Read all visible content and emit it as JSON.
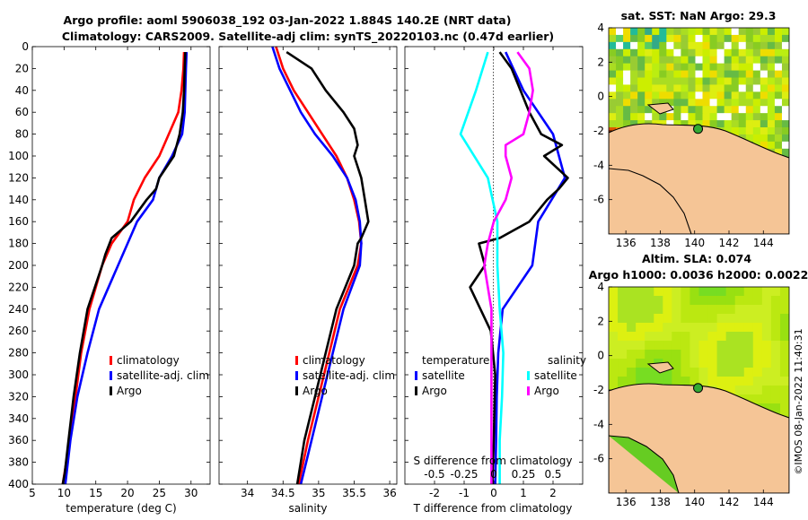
{
  "header": {
    "title_line1": "Argo profile: aoml 5906038_192 03-Jan-2022 1.884S 140.2E (NRT data)",
    "title_line2": "Climatology: CARS2009. Satellite-adj clim: synTS_20220103.nc (0.47d earlier)"
  },
  "footer": {
    "credit": "©IMOS 08-Jan-2022 11:40:31"
  },
  "colors": {
    "climatology": "#ff0000",
    "satellite": "#0000ff",
    "argo": "#000000",
    "satellite_diff": "#00ffff",
    "argo_salinity_diff": "#ff00ff",
    "land": "#f5c596"
  },
  "chart_data": [
    {
      "type": "line",
      "id": "temperature",
      "xlabel": "temperature (deg C)",
      "ylabel": "",
      "xlim": [
        5,
        33
      ],
      "ylim": [
        400,
        0
      ],
      "xticks": [
        "5",
        "10",
        "15",
        "20",
        "25",
        "30"
      ],
      "yticks": [
        "0",
        "20",
        "40",
        "60",
        "80",
        "100",
        "120",
        "140",
        "160",
        "180",
        "200",
        "220",
        "240",
        "260",
        "280",
        "300",
        "320",
        "340",
        "360",
        "380",
        "400"
      ],
      "legend": [
        "climatology",
        "satellite-adj. clim",
        "Argo"
      ],
      "series": [
        {
          "name": "climatology",
          "depth": [
            5,
            20,
            40,
            60,
            80,
            100,
            120,
            140,
            160,
            180,
            200,
            240,
            280,
            320,
            360,
            400
          ],
          "values": [
            28.9,
            28.8,
            28.5,
            28,
            26.5,
            25,
            22.7,
            21,
            20,
            17.5,
            16,
            14,
            12.7,
            11.8,
            10.9,
            9.8
          ]
        },
        {
          "name": "satellite-adj. clim",
          "depth": [
            5,
            20,
            40,
            60,
            80,
            100,
            120,
            140,
            160,
            180,
            200,
            240,
            280,
            320,
            360,
            400
          ],
          "values": [
            29.3,
            29.2,
            29.1,
            29,
            28.6,
            27,
            25,
            24,
            21.5,
            20,
            18.5,
            15.5,
            13.7,
            12.1,
            11,
            10.2
          ]
        },
        {
          "name": "Argo",
          "depth": [
            5,
            20,
            40,
            60,
            80,
            100,
            120,
            130,
            140,
            160,
            175,
            190,
            200,
            240,
            280,
            320,
            360,
            390,
            400
          ],
          "values": [
            29.1,
            29,
            28.9,
            28.7,
            28.2,
            27.3,
            25,
            24.5,
            23,
            20.5,
            17.5,
            16.5,
            16,
            13.7,
            12.5,
            11.5,
            10.7,
            10.1,
            9.8
          ]
        }
      ]
    },
    {
      "type": "line",
      "id": "salinity",
      "xlabel": "salinity",
      "ylabel": "",
      "xlim": [
        33.6,
        36.1
      ],
      "ylim": [
        400,
        0
      ],
      "xticks": [
        "34",
        "34.5",
        "35",
        "35.5",
        "36"
      ],
      "legend": [
        "climatology",
        "satellite-adj. clim",
        "Argo"
      ],
      "series": [
        {
          "name": "climatology",
          "depth": [
            0,
            20,
            40,
            60,
            80,
            100,
            120,
            140,
            160,
            180,
            200,
            240,
            280,
            320,
            360,
            400
          ],
          "values": [
            34.4,
            34.5,
            34.65,
            34.85,
            35.05,
            35.25,
            35.4,
            35.5,
            35.57,
            35.6,
            35.55,
            35.3,
            35.15,
            35.0,
            34.85,
            34.72
          ]
        },
        {
          "name": "satellite-adj. clim",
          "depth": [
            0,
            20,
            40,
            60,
            80,
            100,
            120,
            140,
            160,
            180,
            200,
            240,
            280,
            320,
            360,
            400
          ],
          "values": [
            34.35,
            34.45,
            34.6,
            34.75,
            34.95,
            35.2,
            35.4,
            35.52,
            35.58,
            35.6,
            35.58,
            35.35,
            35.2,
            35.05,
            34.9,
            34.75
          ]
        },
        {
          "name": "Argo",
          "depth": [
            5,
            20,
            40,
            60,
            75,
            90,
            100,
            120,
            140,
            160,
            175,
            180,
            200,
            240,
            280,
            320,
            360,
            400
          ],
          "values": [
            34.55,
            34.9,
            35.1,
            35.35,
            35.5,
            35.55,
            35.5,
            35.6,
            35.65,
            35.7,
            35.6,
            35.55,
            35.5,
            35.25,
            35.1,
            34.95,
            34.8,
            34.7
          ]
        }
      ]
    },
    {
      "type": "line",
      "id": "difference",
      "xlabel": "T difference from climatology",
      "ylabel": "",
      "xlim": [
        -3,
        3
      ],
      "ylim": [
        400,
        0
      ],
      "xticks": [
        "-2",
        "-1",
        "0",
        "1",
        "2"
      ],
      "top_axis_label": "S difference from climatology",
      "top_axis_ticks": [
        "-0.5",
        "-0.25",
        "0",
        "0.25",
        "0.5"
      ],
      "legend_left_title": "temperature",
      "legend_right_title": "salinity",
      "legend_left": [
        "satellite",
        "Argo"
      ],
      "legend_right": [
        "satellite",
        "Argo"
      ],
      "series": [
        {
          "name": "T satellite",
          "depth": [
            5,
            40,
            80,
            120,
            160,
            200,
            240,
            280,
            320,
            360,
            400
          ],
          "values": [
            0.4,
            1.0,
            2.0,
            2.4,
            1.5,
            1.3,
            0.3,
            0.15,
            0.1,
            0.08,
            0.05
          ]
        },
        {
          "name": "T Argo",
          "depth": [
            5,
            20,
            40,
            60,
            80,
            90,
            100,
            120,
            130,
            140,
            160,
            175,
            180,
            200,
            220,
            260,
            300,
            360,
            400
          ],
          "values": [
            0.2,
            0.6,
            0.9,
            1.2,
            1.6,
            2.3,
            1.7,
            2.5,
            2.2,
            1.8,
            1.2,
            0.2,
            -0.5,
            -0.3,
            -0.8,
            -0.1,
            0.05,
            0.0,
            -0.05
          ]
        },
        {
          "name": "S satellite",
          "depth": [
            5,
            40,
            80,
            120,
            160,
            200,
            240,
            280,
            320,
            360,
            400
          ],
          "values": [
            -0.05,
            -0.15,
            -0.28,
            -0.05,
            0.03,
            0.03,
            0.05,
            0.08,
            0.07,
            0.05,
            0.05
          ]
        },
        {
          "name": "S Argo",
          "depth": [
            5,
            20,
            40,
            60,
            80,
            90,
            100,
            120,
            140,
            160,
            180,
            200,
            240,
            280,
            320,
            360,
            400
          ],
          "values": [
            0.2,
            0.3,
            0.33,
            0.3,
            0.25,
            0.1,
            0.1,
            0.15,
            0.1,
            0.0,
            -0.05,
            -0.08,
            -0.02,
            -0.02,
            -0.02,
            -0.02,
            -0.02
          ]
        }
      ]
    },
    {
      "type": "heatmap",
      "id": "sst_map",
      "title": "sat. SST: NaN Argo: 29.3",
      "xlim": [
        135,
        145.5
      ],
      "ylim": [
        -8,
        4
      ],
      "xticks": [
        "136",
        "138",
        "140",
        "142",
        "144"
      ],
      "yticks": [
        "4",
        "2",
        "0",
        "-2",
        "-4",
        "-6"
      ],
      "argo_position": {
        "lon": 140.2,
        "lat": -1.884
      }
    },
    {
      "type": "heatmap",
      "id": "sla_map",
      "title": "Altim. SLA: 0.074",
      "subtitle": "Argo h1000: 0.0036 h2000: 0.0022",
      "xlim": [
        135,
        145.5
      ],
      "ylim": [
        -8,
        4
      ],
      "xticks": [
        "136",
        "138",
        "140",
        "142",
        "144"
      ],
      "yticks": [
        "4",
        "2",
        "0",
        "-2",
        "-4",
        "-6"
      ],
      "argo_position": {
        "lon": 140.2,
        "lat": -1.884
      }
    }
  ]
}
